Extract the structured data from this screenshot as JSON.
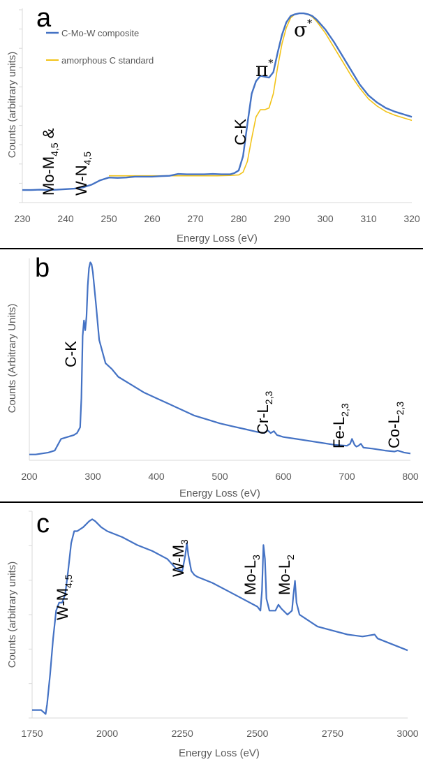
{
  "chart_data": [
    {
      "type": "line",
      "panel_label": "a",
      "xlabel": "Energy Loss (eV)",
      "ylabel": "Counts (arbitrary units)",
      "xlim": [
        230,
        320
      ],
      "x_ticks": [
        230,
        240,
        250,
        260,
        270,
        280,
        290,
        300,
        310,
        320
      ],
      "y_tick_count": 10,
      "grid": false,
      "legend_position": "top-left",
      "colors": {
        "composite": "#4472c4",
        "standard": "#f2c318"
      },
      "series": [
        {
          "name": "C-Mo-W composite",
          "x": [
            230,
            232,
            234,
            236,
            238,
            240,
            242,
            244,
            246,
            248,
            250,
            252,
            254,
            256,
            258,
            260,
            262,
            264,
            266,
            268,
            270,
            272,
            274,
            276,
            278,
            279,
            280,
            281,
            282,
            283,
            284,
            285,
            286,
            287,
            288,
            289,
            290,
            291,
            292,
            293,
            294,
            295,
            296,
            297,
            298,
            300,
            302,
            304,
            306,
            308,
            310,
            312,
            314,
            316,
            318,
            320
          ],
          "y": [
            0.01,
            0.01,
            0.012,
            0.01,
            0.012,
            0.015,
            0.018,
            0.025,
            0.04,
            0.065,
            0.08,
            0.078,
            0.08,
            0.085,
            0.085,
            0.085,
            0.088,
            0.09,
            0.1,
            0.098,
            0.098,
            0.098,
            0.1,
            0.098,
            0.098,
            0.105,
            0.12,
            0.2,
            0.38,
            0.55,
            0.62,
            0.65,
            0.645,
            0.64,
            0.67,
            0.78,
            0.88,
            0.95,
            0.985,
            0.995,
            1.0,
            1.0,
            0.995,
            0.985,
            0.965,
            0.91,
            0.84,
            0.76,
            0.68,
            0.6,
            0.54,
            0.5,
            0.47,
            0.45,
            0.435,
            0.42
          ]
        },
        {
          "name": "amorphous C standard",
          "x": [
            250,
            255,
            260,
            265,
            270,
            275,
            278,
            280,
            281,
            282,
            283,
            284,
            285,
            286,
            287,
            288,
            289,
            290,
            291,
            292,
            293,
            294,
            295,
            296,
            297,
            298,
            300,
            302,
            304,
            306,
            308,
            310,
            312,
            314,
            316,
            318,
            320
          ],
          "y": [
            0.09,
            0.09,
            0.09,
            0.09,
            0.09,
            0.09,
            0.092,
            0.095,
            0.11,
            0.17,
            0.3,
            0.42,
            0.46,
            0.46,
            0.47,
            0.55,
            0.7,
            0.83,
            0.92,
            0.975,
            0.995,
            1.0,
            1.0,
            0.995,
            0.98,
            0.955,
            0.89,
            0.81,
            0.73,
            0.65,
            0.58,
            0.52,
            0.48,
            0.45,
            0.43,
            0.415,
            0.4
          ]
        }
      ],
      "annotations": [
        {
          "main": "Mo-M",
          "sub": "4,5",
          "extra": " &"
        },
        {
          "main": "W-N",
          "sub": "4,5"
        },
        {
          "main": "C-K"
        },
        {
          "main": "π",
          "sup": "*"
        },
        {
          "main": "σ",
          "sup": "*"
        }
      ]
    },
    {
      "type": "line",
      "panel_label": "b",
      "xlabel": "Energy Loss (eV)",
      "ylabel": "Counts (Arbitrary Units)",
      "xlim": [
        200,
        800
      ],
      "x_ticks": [
        200,
        300,
        400,
        500,
        600,
        700,
        800
      ],
      "grid": false,
      "series": [
        {
          "x": [
            200,
            210,
            220,
            230,
            240,
            245,
            250,
            260,
            270,
            275,
            280,
            282,
            284,
            286,
            288,
            290,
            292,
            294,
            296,
            298,
            300,
            305,
            310,
            320,
            330,
            340,
            360,
            380,
            400,
            420,
            440,
            460,
            480,
            500,
            520,
            540,
            560,
            570,
            575,
            580,
            585,
            590,
            600,
            620,
            640,
            660,
            680,
            700,
            705,
            708,
            712,
            715,
            718,
            722,
            726,
            740,
            760,
            775,
            780,
            785,
            790,
            800
          ],
          "y": [
            0.01,
            0.01,
            0.015,
            0.02,
            0.03,
            0.06,
            0.09,
            0.1,
            0.11,
            0.12,
            0.15,
            0.3,
            0.62,
            0.7,
            0.65,
            0.72,
            0.88,
            0.97,
            1.0,
            0.99,
            0.95,
            0.78,
            0.6,
            0.48,
            0.45,
            0.41,
            0.37,
            0.33,
            0.3,
            0.27,
            0.24,
            0.21,
            0.19,
            0.17,
            0.155,
            0.14,
            0.125,
            0.12,
            0.135,
            0.12,
            0.13,
            0.11,
            0.1,
            0.09,
            0.08,
            0.07,
            0.06,
            0.055,
            0.065,
            0.09,
            0.06,
            0.05,
            0.055,
            0.065,
            0.045,
            0.04,
            0.03,
            0.025,
            0.03,
            0.025,
            0.02,
            0.015
          ]
        }
      ],
      "annotations": [
        {
          "main": "C-K"
        },
        {
          "main": "Cr-L",
          "sub": "2,3"
        },
        {
          "main": "Fe-L",
          "sub": "2,3"
        },
        {
          "main": "Co-L",
          "sub": "2,3"
        }
      ]
    },
    {
      "type": "line",
      "panel_label": "c",
      "xlabel": "Energy Loss (eV)",
      "ylabel": "Counts (arbitrary units)",
      "xlim": [
        1750,
        3000
      ],
      "x_ticks": [
        1750,
        2000,
        2250,
        2500,
        2750,
        3000
      ],
      "y_tick_count": 6,
      "grid": false,
      "series": [
        {
          "x": [
            1750,
            1765,
            1780,
            1795,
            1800,
            1810,
            1820,
            1830,
            1840,
            1850,
            1860,
            1870,
            1880,
            1890,
            1900,
            1920,
            1940,
            1950,
            1960,
            1980,
            2000,
            2050,
            2100,
            2150,
            2200,
            2230,
            2250,
            2260,
            2265,
            2270,
            2280,
            2290,
            2300,
            2350,
            2400,
            2450,
            2500,
            2510,
            2515,
            2520,
            2525,
            2530,
            2540,
            2560,
            2570,
            2580,
            2600,
            2615,
            2620,
            2625,
            2630,
            2640,
            2660,
            2700,
            2750,
            2800,
            2850,
            2890,
            2900,
            2950,
            3000
          ],
          "y": [
            0.02,
            0.02,
            0.02,
            0.0,
            0.05,
            0.2,
            0.38,
            0.52,
            0.56,
            0.56,
            0.6,
            0.72,
            0.86,
            0.92,
            0.92,
            0.94,
            0.97,
            0.98,
            0.97,
            0.94,
            0.92,
            0.89,
            0.85,
            0.82,
            0.78,
            0.73,
            0.72,
            0.8,
            0.86,
            0.8,
            0.72,
            0.7,
            0.69,
            0.66,
            0.62,
            0.58,
            0.54,
            0.52,
            0.62,
            0.85,
            0.78,
            0.58,
            0.52,
            0.52,
            0.55,
            0.53,
            0.5,
            0.52,
            0.6,
            0.67,
            0.56,
            0.5,
            0.48,
            0.44,
            0.42,
            0.4,
            0.39,
            0.4,
            0.38,
            0.35,
            0.32
          ]
        }
      ],
      "annotations": [
        {
          "main": "W-M",
          "sub": "4,5"
        },
        {
          "main": "W-M",
          "sub": "3"
        },
        {
          "main": "Mo-L",
          "sub": "3"
        },
        {
          "main": "Mo-L",
          "sub": "2"
        }
      ]
    }
  ]
}
